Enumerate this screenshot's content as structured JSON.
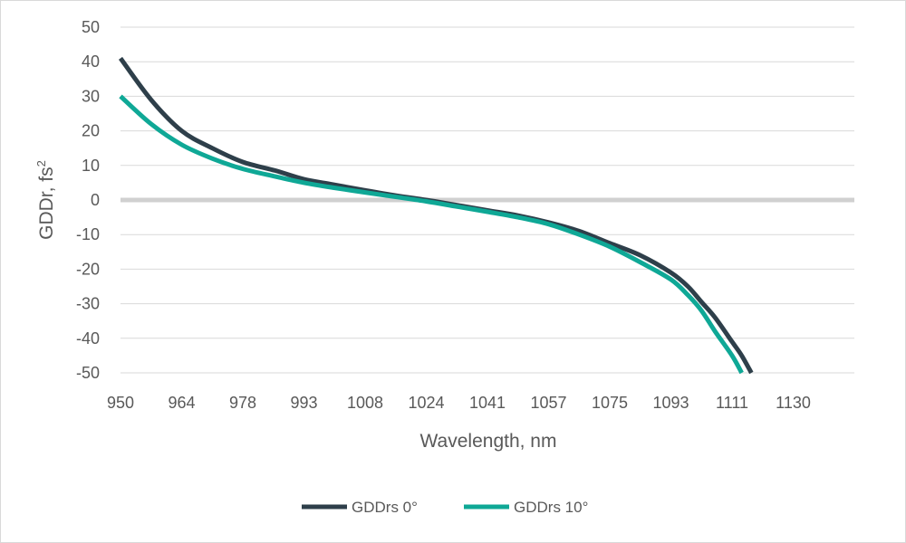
{
  "chart_data": {
    "type": "line",
    "title": "",
    "xlabel": "Wavelength, nm",
    "ylabel": "GDDr, fs",
    "ylabel_superscript": "2",
    "ylim": [
      -50,
      50
    ],
    "y_ticks": [
      50,
      40,
      30,
      20,
      10,
      0,
      -10,
      -20,
      -30,
      -40,
      -50
    ],
    "x_tick_labels": [
      "950",
      "964",
      "978",
      "993",
      "1008",
      "1024",
      "1041",
      "1057",
      "1075",
      "1093",
      "1111",
      "1130"
    ],
    "grid": true,
    "legend_position": "bottom",
    "series": [
      {
        "name": "GDDrs 0°",
        "color": "#2e3f4a",
        "x": [
          950,
          957,
          964,
          971,
          978,
          986,
          993,
          1000,
          1008,
          1016,
          1024,
          1032,
          1041,
          1049,
          1057,
          1066,
          1075,
          1084,
          1093,
          1098,
          1102,
          1106,
          1111,
          1114,
          1117
        ],
        "y": [
          41,
          29,
          20,
          15,
          11,
          8.5,
          6,
          4.5,
          2.8,
          1.3,
          0,
          -1.4,
          -3,
          -4.5,
          -6.5,
          -9,
          -12.5,
          -16,
          -21,
          -25,
          -29.5,
          -34,
          -41,
          -45,
          -50
        ]
      },
      {
        "name": "GDDrs 10°",
        "color": "#0fa896",
        "x": [
          950,
          957,
          964,
          971,
          978,
          986,
          993,
          1000,
          1008,
          1016,
          1024,
          1032,
          1041,
          1049,
          1057,
          1066,
          1075,
          1084,
          1093,
          1098,
          1102,
          1106,
          1111,
          1114
        ],
        "y": [
          30,
          22,
          16,
          12,
          9,
          6.8,
          5,
          3.6,
          2.2,
          0.9,
          -0.4,
          -1.8,
          -3.4,
          -5,
          -7,
          -10,
          -13.5,
          -18,
          -23,
          -27.5,
          -32,
          -38,
          -45,
          -50
        ]
      }
    ]
  }
}
